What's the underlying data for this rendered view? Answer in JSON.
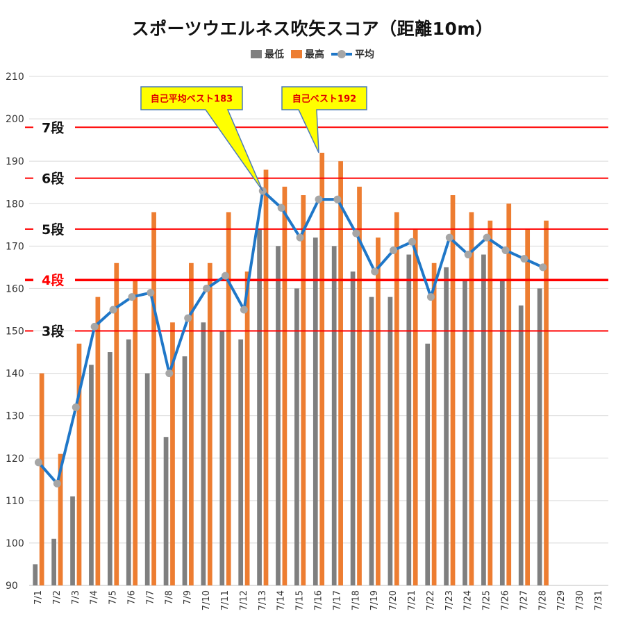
{
  "chart_data": {
    "type": "bar",
    "title": "スポーツウエルネス吹矢スコア（距離10m）",
    "categories": [
      "7/1",
      "7/2",
      "7/3",
      "7/4",
      "7/5",
      "7/6",
      "7/7",
      "7/8",
      "7/9",
      "7/10",
      "7/11",
      "7/12",
      "7/13",
      "7/14",
      "7/15",
      "7/16",
      "7/17",
      "7/18",
      "7/19",
      "7/20",
      "7/21",
      "7/22",
      "7/23",
      "7/24",
      "7/25",
      "7/26",
      "7/27",
      "7/28",
      "7/29",
      "7/30",
      "7/31"
    ],
    "series": [
      {
        "name": "最低",
        "type": "bar",
        "color": "#7f7f7f",
        "values": [
          95,
          101,
          111,
          142,
          145,
          148,
          140,
          125,
          144,
          152,
          150,
          148,
          174,
          170,
          160,
          172,
          170,
          164,
          158,
          158,
          168,
          147,
          165,
          162,
          168,
          162,
          156,
          160,
          null,
          null,
          null
        ]
      },
      {
        "name": "最高",
        "type": "bar",
        "color": "#ed7d31",
        "values": [
          140,
          121,
          147,
          158,
          166,
          162,
          178,
          152,
          166,
          166,
          178,
          164,
          188,
          184,
          182,
          192,
          190,
          184,
          172,
          178,
          174,
          166,
          182,
          178,
          176,
          180,
          174,
          176,
          null,
          null,
          null
        ]
      },
      {
        "name": "平均",
        "type": "line",
        "color": "#1f77c8",
        "marker_color": "#a6a6a6",
        "values": [
          119,
          114,
          132,
          151,
          155,
          158,
          159,
          140,
          153,
          160,
          163,
          155,
          183,
          179,
          172,
          181,
          181,
          173,
          164,
          169,
          171,
          158,
          172,
          168,
          172,
          169,
          167,
          165,
          null,
          null,
          null
        ]
      }
    ],
    "ylim": [
      90,
      210
    ],
    "yticks": [
      90,
      100,
      110,
      120,
      130,
      140,
      150,
      160,
      170,
      180,
      190,
      200,
      210
    ],
    "grid": true,
    "legend_position": "top-center",
    "reference_lines": [
      {
        "label": "7段",
        "value": 198,
        "color": "#ff0000"
      },
      {
        "label": "6段",
        "value": 186,
        "color": "#ff0000"
      },
      {
        "label": "5段",
        "value": 174,
        "color": "#ff0000"
      },
      {
        "label": "4段",
        "value": 162,
        "color": "#ff0000",
        "emphasis": true
      },
      {
        "label": "3段",
        "value": 150,
        "color": "#ff0000"
      }
    ],
    "annotations": [
      {
        "text": "自己平均ベスト183",
        "target_category": "7/13",
        "target_value": 183
      },
      {
        "text": "自己ベスト192",
        "target_category": "7/16",
        "target_value": 192
      }
    ]
  }
}
